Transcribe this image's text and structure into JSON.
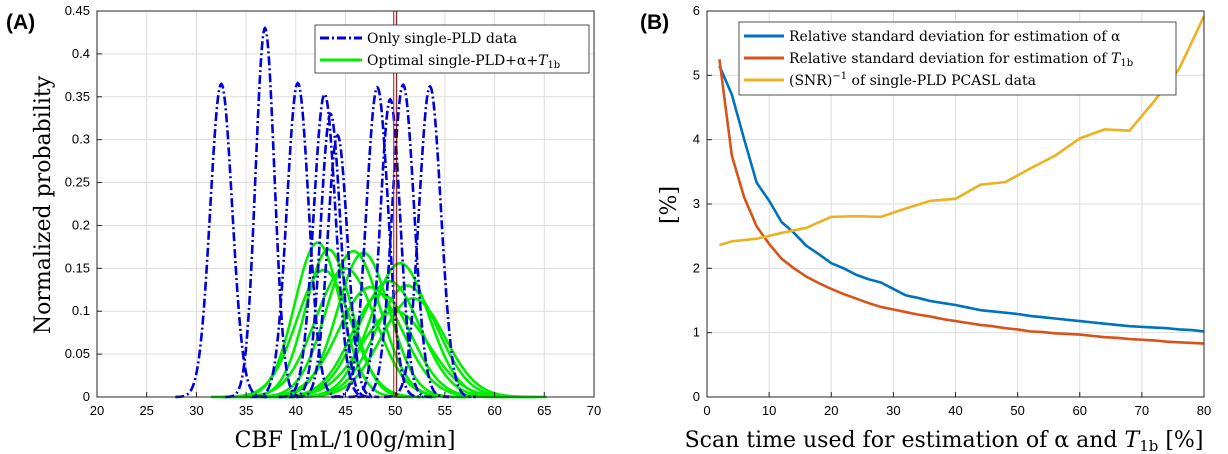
{
  "chart_data": [
    {
      "panel_label": "(A)",
      "type": "line",
      "xlabel": "CBF [mL/100g/min]",
      "ylabel": "Normalized probability",
      "xlim": [
        20,
        70
      ],
      "ylim": [
        0,
        0.45
      ],
      "xticks": [
        "20",
        "25",
        "30",
        "35",
        "40",
        "45",
        "50",
        "55",
        "60",
        "65",
        "70"
      ],
      "yticks": [
        "0",
        "0.05",
        "0.1",
        "0.15",
        "0.2",
        "0.25",
        "0.3",
        "0.35",
        "0.4",
        "0.45"
      ],
      "grid": true,
      "legend_position": "top-right",
      "reference_line_x": 50,
      "series": [
        {
          "name": "Only single-PLD data",
          "color": "#0000dd",
          "style": "dash-dot",
          "gaussians": [
            {
              "mu": 32.5,
              "sigma": 1.1,
              "peak": 0.365
            },
            {
              "mu": 36.9,
              "sigma": 0.95,
              "peak": 0.43
            },
            {
              "mu": 40.2,
              "sigma": 1.1,
              "peak": 0.366
            },
            {
              "mu": 42.9,
              "sigma": 1.1,
              "peak": 0.353
            },
            {
              "mu": 43.5,
              "sigma": 1.0,
              "peak": 0.33
            },
            {
              "mu": 44.2,
              "sigma": 1.0,
              "peak": 0.305
            },
            {
              "mu": 48.2,
              "sigma": 1.1,
              "peak": 0.361
            },
            {
              "mu": 49.5,
              "sigma": 1.0,
              "peak": 0.347
            },
            {
              "mu": 50.8,
              "sigma": 1.1,
              "peak": 0.364
            },
            {
              "mu": 53.5,
              "sigma": 1.1,
              "peak": 0.362
            }
          ]
        },
        {
          "name": "Optimal single-PLD+α+T_1b",
          "legend_main": "Optimal single-PLD+α+",
          "legend_sym": "T",
          "legend_sub": "1b",
          "color": "#00ee00",
          "style": "solid",
          "gaussians": [
            {
              "mu": 42.2,
              "sigma": 2.3,
              "peak": 0.18
            },
            {
              "mu": 43.3,
              "sigma": 2.3,
              "peak": 0.172
            },
            {
              "mu": 42.8,
              "sigma": 2.7,
              "peak": 0.148
            },
            {
              "mu": 45.8,
              "sigma": 2.7,
              "peak": 0.17
            },
            {
              "mu": 46.8,
              "sigma": 2.6,
              "peak": 0.168
            },
            {
              "mu": 45.0,
              "sigma": 3.0,
              "peak": 0.15
            },
            {
              "mu": 47.5,
              "sigma": 3.2,
              "peak": 0.128
            },
            {
              "mu": 48.6,
              "sigma": 3.0,
              "peak": 0.12
            },
            {
              "mu": 49.4,
              "sigma": 3.1,
              "peak": 0.135
            },
            {
              "mu": 50.5,
              "sigma": 2.9,
              "peak": 0.156
            },
            {
              "mu": 51.2,
              "sigma": 3.1,
              "peak": 0.13
            },
            {
              "mu": 51.8,
              "sigma": 3.2,
              "peak": 0.115
            },
            {
              "mu": 50.0,
              "sigma": 3.4,
              "peak": 0.1
            }
          ]
        }
      ]
    },
    {
      "panel_label": "(B)",
      "type": "line",
      "xlabel_main": "Scan time used for estimation of α and ",
      "xlabel_sym": "T",
      "xlabel_sub": "1b",
      "xlabel_tail": " [%]",
      "ylabel": "[%]",
      "xlim": [
        0,
        80
      ],
      "ylim": [
        0,
        6
      ],
      "xticks": [
        "0",
        "10",
        "20",
        "30",
        "40",
        "50",
        "60",
        "70",
        "80"
      ],
      "yticks": [
        "0",
        "1",
        "2",
        "3",
        "4",
        "5",
        "6"
      ],
      "grid": true,
      "legend_position": "top-left",
      "series": [
        {
          "name": "Relative standard deviation for estimation of α",
          "legend_main": "Relative standard deviation for estimation of α",
          "color": "#0072bd",
          "x": [
            2,
            4,
            6,
            8,
            10,
            12,
            14,
            16,
            18,
            20,
            22,
            24,
            26,
            28,
            30,
            32,
            34,
            36,
            38,
            40,
            42,
            44,
            46,
            48,
            50,
            52,
            54,
            56,
            58,
            60,
            62,
            64,
            66,
            68,
            70,
            72,
            74,
            76,
            78,
            80
          ],
          "y": [
            5.15,
            4.7,
            4.0,
            3.33,
            3.05,
            2.72,
            2.55,
            2.35,
            2.22,
            2.08,
            2.0,
            1.9,
            1.83,
            1.78,
            1.68,
            1.58,
            1.54,
            1.49,
            1.46,
            1.43,
            1.39,
            1.35,
            1.33,
            1.31,
            1.29,
            1.26,
            1.24,
            1.22,
            1.2,
            1.18,
            1.16,
            1.14,
            1.12,
            1.1,
            1.09,
            1.08,
            1.07,
            1.05,
            1.04,
            1.02
          ]
        },
        {
          "name": "Relative standard deviation for estimation of T_1b",
          "legend_main": "Relative standard deviation for estimation of ",
          "legend_sym": "T",
          "legend_sub": "1b",
          "color": "#d95319",
          "x": [
            2,
            4,
            6,
            8,
            10,
            12,
            14,
            16,
            18,
            20,
            22,
            24,
            26,
            28,
            30,
            32,
            34,
            36,
            38,
            40,
            42,
            44,
            46,
            48,
            50,
            52,
            54,
            56,
            58,
            60,
            62,
            64,
            66,
            68,
            70,
            72,
            74,
            76,
            78,
            80
          ],
          "y": [
            5.25,
            3.75,
            3.1,
            2.65,
            2.38,
            2.15,
            2.0,
            1.87,
            1.77,
            1.68,
            1.6,
            1.53,
            1.46,
            1.4,
            1.36,
            1.32,
            1.28,
            1.25,
            1.21,
            1.18,
            1.15,
            1.12,
            1.1,
            1.07,
            1.05,
            1.02,
            1.01,
            0.99,
            0.98,
            0.97,
            0.95,
            0.93,
            0.92,
            0.9,
            0.89,
            0.88,
            0.86,
            0.85,
            0.84,
            0.83
          ]
        },
        {
          "name": "(SNR)^-1 of single-PLD PCASL data",
          "legend_pre": "(SNR)",
          "legend_sup": "−1",
          "legend_post": " of single-PLD PCASL data",
          "color": "#edb120",
          "x": [
            2,
            4,
            8,
            12,
            16,
            20,
            24,
            28,
            32,
            36,
            40,
            44,
            48,
            52,
            56,
            60,
            64,
            68,
            72,
            76,
            80
          ],
          "y": [
            2.36,
            2.42,
            2.46,
            2.55,
            2.63,
            2.8,
            2.81,
            2.8,
            2.93,
            3.05,
            3.08,
            3.3,
            3.34,
            3.55,
            3.75,
            4.02,
            4.16,
            4.14,
            4.6,
            5.1,
            5.92
          ]
        }
      ]
    }
  ]
}
